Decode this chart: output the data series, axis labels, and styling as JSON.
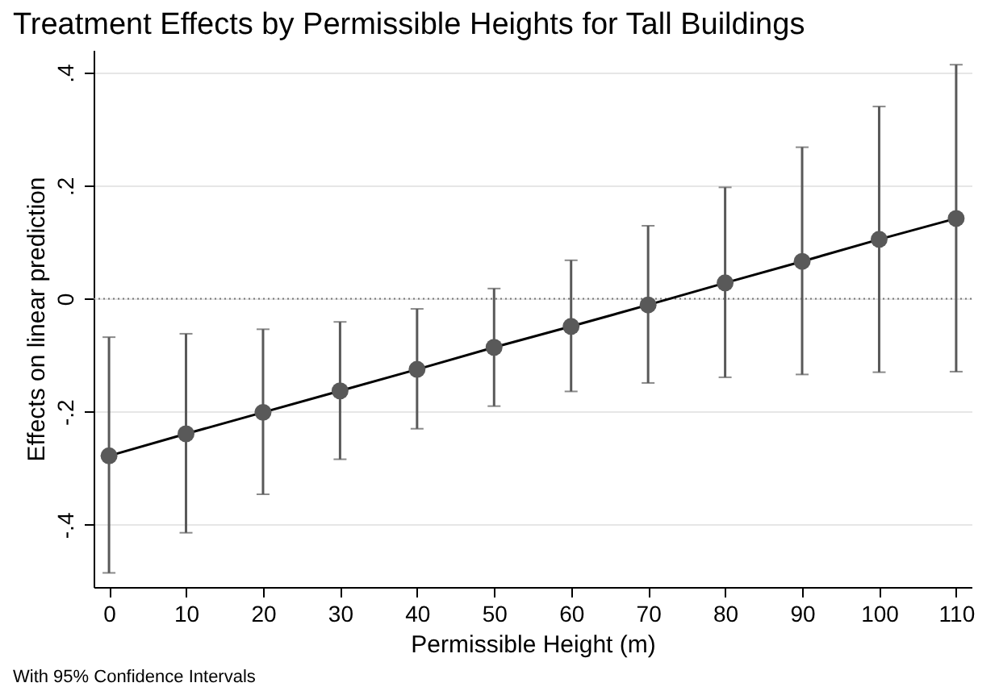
{
  "chart_data": {
    "type": "line",
    "title": "Treatment Effects by Permissible Heights for Tall Buildings",
    "xlabel": "Permissible Height (m)",
    "ylabel": "Effects on linear prediction",
    "annotations": [
      "With 95% Confidence Intervals"
    ],
    "x": [
      0,
      10,
      20,
      30,
      40,
      50,
      60,
      70,
      80,
      90,
      100,
      110
    ],
    "series": [
      {
        "color": "#595959",
        "values": [
          -0.278,
          -0.239,
          -0.201,
          -0.163,
          -0.125,
          -0.086,
          -0.049,
          -0.011,
          0.028,
          0.066,
          0.105,
          0.142
        ],
        "errors": [
          [
            -0.485,
            -0.068
          ],
          [
            -0.414,
            -0.062
          ],
          [
            -0.346,
            -0.054
          ],
          [
            -0.284,
            -0.041
          ],
          [
            -0.23,
            -0.018
          ],
          [
            -0.19,
            0.018
          ],
          [
            -0.164,
            0.068
          ],
          [
            -0.149,
            0.129
          ],
          [
            -0.139,
            0.197
          ],
          [
            -0.134,
            0.268
          ],
          [
            -0.13,
            0.34
          ],
          [
            -0.129,
            0.414
          ]
        ]
      }
    ],
    "xlim": [
      -2,
      112
    ],
    "xticks": [
      0,
      10,
      20,
      30,
      40,
      50,
      60,
      70,
      80,
      90,
      100,
      110
    ],
    "ylim": [
      -0.51,
      0.44
    ],
    "yticks": [
      {
        "value": -0.4,
        "label": "-.4"
      },
      {
        "value": -0.2,
        "label": "-.2"
      },
      {
        "value": 0,
        "label": "0"
      },
      {
        "value": 0.2,
        "label": ".2"
      },
      {
        "value": 0.4,
        "label": ".4"
      }
    ],
    "ref_lines": [
      {
        "axis": "y",
        "value": 0,
        "line_style": "dotted",
        "color": "#777777"
      }
    ],
    "grid": "y",
    "marker": "circle",
    "line_style": "solid"
  }
}
